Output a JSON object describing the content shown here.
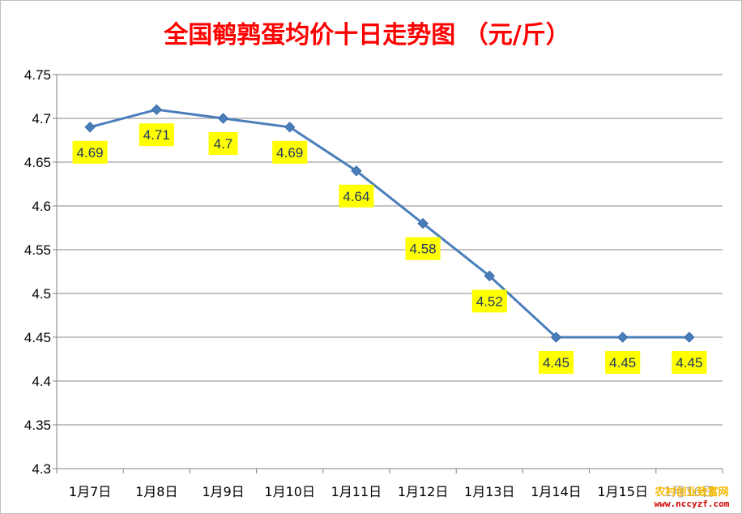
{
  "chart_data": {
    "type": "line",
    "title": "全国鹌鹑蛋均价十日走势图 （元/斤）",
    "categories": [
      "1月7日",
      "1月8日",
      "1月9日",
      "1月10日",
      "1月11日",
      "1月12日",
      "1月13日",
      "1月14日",
      "1月15日",
      "1月16日"
    ],
    "series": [
      {
        "values": [
          4.69,
          4.71,
          4.7,
          4.69,
          4.64,
          4.58,
          4.52,
          4.45,
          4.45,
          4.45
        ]
      }
    ],
    "ylim": [
      4.3,
      4.75
    ],
    "yticks": [
      "4.3",
      "4.35",
      "4.4",
      "4.45",
      "4.5",
      "4.55",
      "4.6",
      "4.65",
      "4.7",
      "4.75"
    ],
    "data_labels": [
      "4.69",
      "4.71",
      "4.7",
      "4.69",
      "4.64",
      "4.58",
      "4.52",
      "4.45",
      "4.45",
      "4.45"
    ],
    "grid": true,
    "legend": "none",
    "colors": {
      "line": "#4a7ebb",
      "marker": "#4a7ebb",
      "label_bg": "#ffff00",
      "title": "#ff0000",
      "grid": "#888888"
    }
  },
  "watermark": {
    "line1": "农村创业致富网",
    "line2": "www.nccyzf.com"
  }
}
